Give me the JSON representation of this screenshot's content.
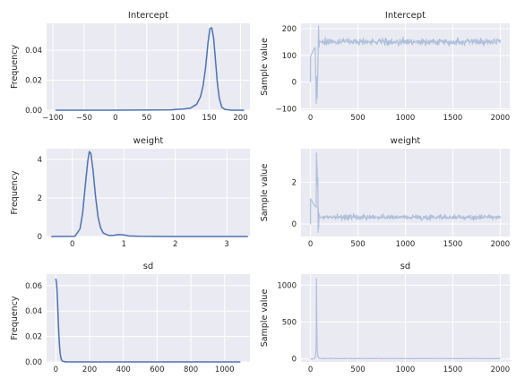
{
  "colors": {
    "density": "#4c72b0",
    "trace": "#b0c0dc",
    "panel": "#eaeaf2",
    "grid": "#ffffff"
  },
  "chart_data": [
    {
      "type": "line",
      "title": "Intercept",
      "xlabel": "",
      "ylabel": "Frequency",
      "xlim": [
        -110,
        215
      ],
      "ylim": [
        0,
        0.058
      ],
      "xticks": [
        "−100",
        "−50",
        "0",
        "50",
        "100",
        "150",
        "200"
      ],
      "xtick_values": [
        -100,
        -50,
        0,
        50,
        100,
        150,
        200
      ],
      "yticks": [
        "0.00",
        "0.02",
        "0.04"
      ],
      "ytick_values": [
        0,
        0.02,
        0.04
      ],
      "grid": true,
      "series": [
        {
          "x": [
            -95,
            0,
            90,
            100,
            110,
            120,
            130,
            136,
            140,
            144,
            148,
            151,
            154,
            157,
            160,
            163,
            166,
            170,
            175,
            185,
            205
          ],
          "y": [
            0,
            0,
            0.0002,
            0.0006,
            0.0008,
            0.0014,
            0.004,
            0.009,
            0.016,
            0.028,
            0.045,
            0.0545,
            0.055,
            0.048,
            0.033,
            0.018,
            0.008,
            0.002,
            0.0005,
            0,
            0
          ]
        }
      ]
    },
    {
      "type": "line",
      "title": "Intercept",
      "xlabel": "",
      "ylabel": "Sample value",
      "xlim": [
        -100,
        2100
      ],
      "ylim": [
        -105,
        220
      ],
      "xticks": [
        "0",
        "500",
        "1000",
        "1500",
        "2000"
      ],
      "xtick_values": [
        0,
        500,
        1000,
        1500,
        2000
      ],
      "yticks": [
        "−100",
        "0",
        "100",
        "200"
      ],
      "ytick_values": [
        -100,
        0,
        100,
        200
      ],
      "grid": true,
      "series": [
        {
          "x": [
            0,
            1,
            5,
            10,
            20,
            30,
            40,
            50,
            60,
            65,
            70,
            75,
            80,
            85,
            90,
            95,
            100,
            110,
            120,
            2000
          ],
          "y": [
            0,
            95,
            100,
            105,
            110,
            118,
            125,
            130,
            -80,
            20,
            -60,
            10,
            90,
            210,
            130,
            155,
            150,
            152,
            148,
            150
          ]
        }
      ],
      "steady_state": {
        "mean": 151,
        "noise": 6
      }
    },
    {
      "type": "line",
      "title": "weight",
      "xlabel": "",
      "ylabel": "Frequency",
      "xlim": [
        -0.5,
        3.45
      ],
      "ylim": [
        0,
        4.55
      ],
      "xticks": [
        "0",
        "1",
        "2",
        "3"
      ],
      "xtick_values": [
        0,
        1,
        2,
        3
      ],
      "yticks": [
        "0",
        "2",
        "4"
      ],
      "ytick_values": [
        0,
        2,
        4
      ],
      "grid": true,
      "series": [
        {
          "x": [
            -0.4,
            0.05,
            0.15,
            0.2,
            0.25,
            0.3,
            0.33,
            0.36,
            0.4,
            0.45,
            0.5,
            0.55,
            0.6,
            0.7,
            0.8,
            0.9,
            1.0,
            1.1,
            1.3,
            2.0,
            3.4
          ],
          "y": [
            0,
            0.01,
            0.4,
            1.2,
            2.6,
            3.9,
            4.4,
            4.3,
            3.5,
            2.1,
            1.0,
            0.45,
            0.18,
            0.06,
            0.06,
            0.1,
            0.08,
            0.03,
            0.01,
            0,
            0
          ]
        }
      ]
    },
    {
      "type": "line",
      "title": "weight",
      "xlabel": "",
      "ylabel": "Sample value",
      "xlim": [
        -100,
        2100
      ],
      "ylim": [
        -0.6,
        3.6
      ],
      "xticks": [
        "0",
        "500",
        "1000",
        "1500",
        "2000"
      ],
      "xtick_values": [
        0,
        500,
        1000,
        1500,
        2000
      ],
      "yticks": [
        "0",
        "2"
      ],
      "ytick_values": [
        0,
        2
      ],
      "grid": true,
      "series": [
        {
          "x": [
            0,
            1,
            10,
            20,
            30,
            40,
            50,
            60,
            63,
            66,
            70,
            74,
            78,
            80,
            83,
            86,
            90,
            95,
            100,
            110,
            2000
          ],
          "y": [
            0,
            1.2,
            1.15,
            1.05,
            0.95,
            0.9,
            0.85,
            0.8,
            3.4,
            3.0,
            2.6,
            1.8,
            2.2,
            -0.4,
            0.8,
            -0.2,
            0.5,
            0.3,
            0.35,
            0.3,
            0.3
          ]
        }
      ],
      "steady_state": {
        "mean": 0.32,
        "noise": 0.06
      }
    },
    {
      "type": "line",
      "title": "sd",
      "xlabel": "",
      "ylabel": "Frequency",
      "xlim": [
        -55,
        1150
      ],
      "ylim": [
        0,
        0.069
      ],
      "xticks": [
        "0",
        "200",
        "400",
        "600",
        "800",
        "1000"
      ],
      "xtick_values": [
        0,
        200,
        400,
        600,
        800,
        1000
      ],
      "yticks": [
        "0.00",
        "0.02",
        "0.04",
        "0.06"
      ],
      "ytick_values": [
        0,
        0.02,
        0.04,
        0.06
      ],
      "grid": true,
      "series": [
        {
          "x": [
            0,
            3,
            6,
            9,
            12,
            15,
            18,
            22,
            26,
            32,
            40,
            60,
            1090
          ],
          "y": [
            0.065,
            0.063,
            0.058,
            0.05,
            0.04,
            0.03,
            0.021,
            0.012,
            0.006,
            0.002,
            0.0005,
            0,
            0
          ]
        }
      ]
    },
    {
      "type": "line",
      "title": "sd",
      "xlabel": "",
      "ylabel": "Sample value",
      "xlim": [
        -100,
        2100
      ],
      "ylim": [
        -40,
        1150
      ],
      "xticks": [
        "0",
        "500",
        "1000",
        "1500",
        "2000"
      ],
      "xtick_values": [
        0,
        500,
        1000,
        1500,
        2000
      ],
      "yticks": [
        "0",
        "500",
        "1000"
      ],
      "ytick_values": [
        0,
        500,
        1000
      ],
      "grid": true,
      "series": [
        {
          "x": [
            0,
            20,
            40,
            50,
            55,
            60,
            63,
            66,
            69,
            72,
            76,
            80,
            85,
            90,
            100,
            120,
            2000
          ],
          "y": [
            0,
            0,
            0,
            10,
            60,
            200,
            1090,
            600,
            250,
            120,
            60,
            30,
            15,
            8,
            5,
            5,
            5
          ]
        }
      ],
      "steady_state": {
        "mean": 5,
        "noise": 1.5
      }
    }
  ]
}
